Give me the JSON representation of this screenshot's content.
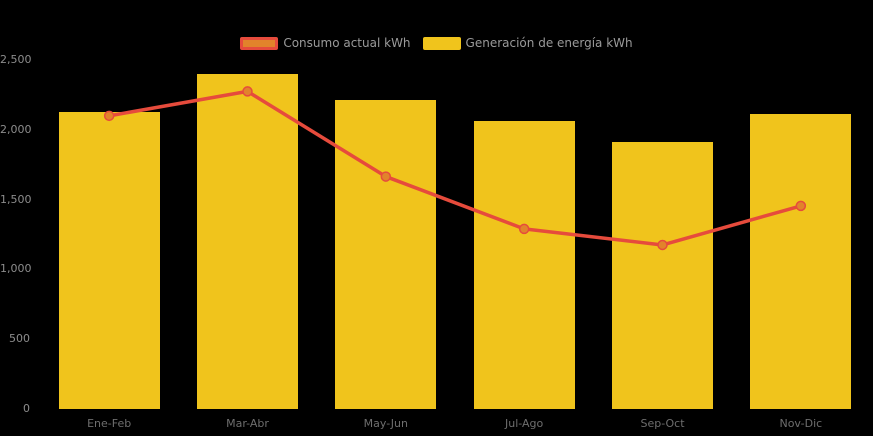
{
  "chart_data": {
    "type": "bar",
    "title": "",
    "categories": [
      "Ene-Feb",
      "Mar-Abr",
      "May-Jun",
      "Jul-Ago",
      "Sep-Oct",
      "Nov-Dic"
    ],
    "series": [
      {
        "name": "Consumo actual kWh",
        "type": "line",
        "values": [
          2100,
          2275,
          1665,
          1290,
          1175,
          1455
        ],
        "color": "#e64b3c",
        "marker_fill": "#e2832b"
      },
      {
        "name": "Generación de energía kWh",
        "type": "bar",
        "values": [
          2130,
          2400,
          2210,
          2065,
          1915,
          2110
        ],
        "color": "#f0c41c"
      }
    ],
    "xlabel": "",
    "ylabel": "",
    "ylim": [
      0,
      2500
    ],
    "yticks": [
      "0",
      "500",
      "1,000",
      "1,500",
      "2,000",
      "2,500"
    ],
    "grid": false,
    "legend_position": "top",
    "background_color": "#000000",
    "ytick_color": "#8c8c8c",
    "xtick_color": "#6e6e6e",
    "legend_text_color": "#9a9a9a"
  }
}
